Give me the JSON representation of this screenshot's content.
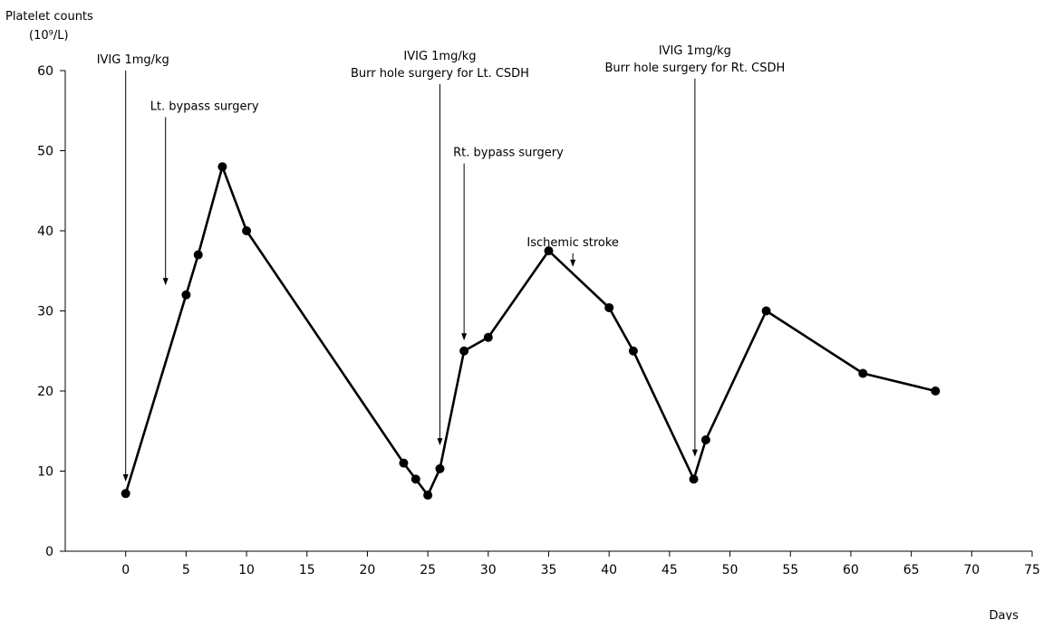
{
  "chart_data": {
    "type": "line",
    "ylabel": "Platelet counts",
    "yunit": "(10⁹/L)",
    "xlabel": "Days",
    "xlim": [
      -5,
      75
    ],
    "ylim": [
      0,
      60
    ],
    "xticks": [
      0,
      5,
      10,
      15,
      20,
      25,
      30,
      35,
      40,
      45,
      50,
      55,
      60,
      65,
      70,
      75
    ],
    "yticks": [
      0,
      10,
      20,
      30,
      40,
      50,
      60
    ],
    "grid": false,
    "series": [
      {
        "color": "#000000",
        "points": [
          {
            "x": 0,
            "y": 7.2
          },
          {
            "x": 5,
            "y": 32
          },
          {
            "x": 6,
            "y": 37
          },
          {
            "x": 8,
            "y": 48
          },
          {
            "x": 10,
            "y": 40
          },
          {
            "x": 23,
            "y": 11
          },
          {
            "x": 24,
            "y": 9
          },
          {
            "x": 25,
            "y": 7
          },
          {
            "x": 26,
            "y": 10.3
          },
          {
            "x": 28,
            "y": 25
          },
          {
            "x": 30,
            "y": 26.7
          },
          {
            "x": 35,
            "y": 37.5
          },
          {
            "x": 40,
            "y": 30.4
          },
          {
            "x": 42,
            "y": 25
          },
          {
            "x": 47,
            "y": 9
          },
          {
            "x": 48,
            "y": 13.9
          },
          {
            "x": 53,
            "y": 30
          },
          {
            "x": 61,
            "y": 22.2
          },
          {
            "x": 67,
            "y": 20
          }
        ]
      }
    ],
    "annotations": [
      {
        "lines": [
          "IVIG 1mg/kg"
        ],
        "x": 0,
        "y_top": 60,
        "y_tip": 8.7,
        "text_align": "start"
      },
      {
        "lines": [
          "Lt. bypass surgery"
        ],
        "x": 3.3,
        "y_top": 54.2,
        "y_tip": 33.2,
        "text_align": "start"
      },
      {
        "lines": [
          "IVIG 1mg/kg",
          "Burr hole surgery for Lt. CSDH"
        ],
        "x": 26,
        "y_top": 58.3,
        "y_tip": 13.2,
        "text_align": "middle"
      },
      {
        "lines": [
          "Rt. bypass surgery"
        ],
        "x": 28,
        "y_top": 48.4,
        "y_tip": 26.3,
        "text_align": "start"
      },
      {
        "lines": [
          "Ischemic stroke"
        ],
        "x": 37,
        "y_top": 37.2,
        "y_tip": 35.5,
        "text_align": "middle"
      },
      {
        "lines": [
          "IVIG 1mg/kg",
          "Burr hole surgery for Rt. CSDH"
        ],
        "x": 47.1,
        "y_top": 59,
        "y_tip": 11.8,
        "text_align": "middle"
      }
    ]
  }
}
